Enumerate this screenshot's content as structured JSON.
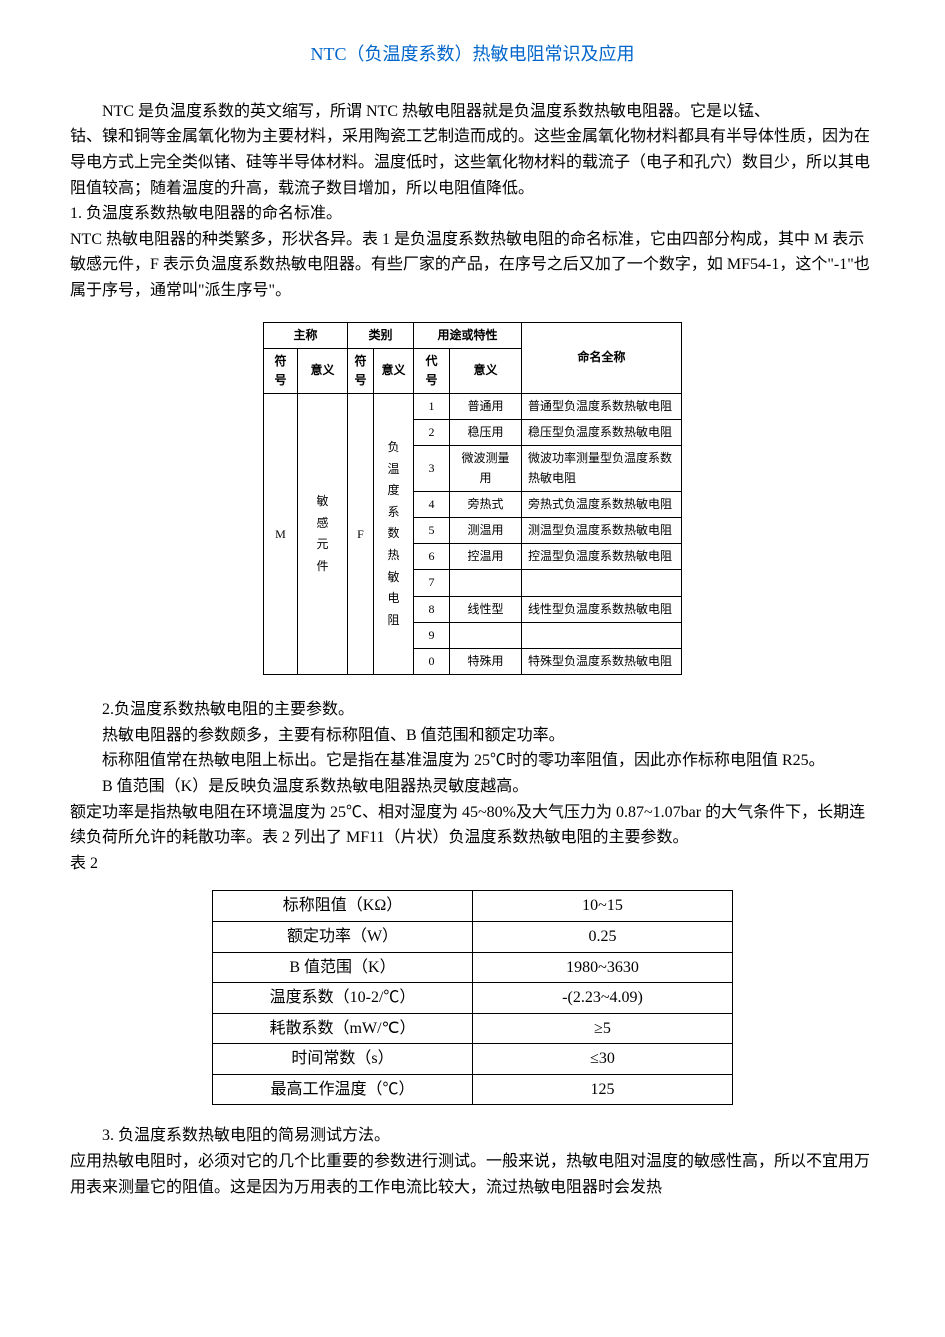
{
  "title": "NTC（负温度系数）热敏电阻常识及应用",
  "para1_a": "NTC 是负温度系数的英文缩写，所谓 NTC 热敏电阻器就是负温度系数热敏电阻器。它是以锰、",
  "para1_b": "钴、镍和铜等金属氧化物为主要材料，采用陶瓷工艺制造而成的。这些金属氧化物材料都具有半导体性质，因为在导电方式上完全类似锗、硅等半导体材料。温度低时，这些氧化物材料的载流子（电子和孔穴）数目少，所以其电阻值较高；随着温度的升高，载流子数目增加，所以电阻值降低。",
  "sec1_title": "1. 负温度系数热敏电阻器的命名标准。",
  "sec1_body": "NTC 热敏电阻器的种类繁多，形状各异。表 1 是负温度系数热敏电阻的命名标准，它由四部分构成，其中 M 表示敏感元件，F 表示负温度系数热敏电阻器。有些厂家的产品，在序号之后又加了一个数字，如 MF54-1，这个\"-1\"也属于序号，通常叫\"派生序号\"。",
  "t1": {
    "headers": {
      "group1": "主称",
      "group2": "类别",
      "group3": "用途或特性",
      "h_sym": "符号",
      "h_mean": "意义",
      "h_sym2": "符号",
      "h_mean2": "意义",
      "h_code": "代号",
      "h_mean3": "意义",
      "h_full": "命名全称"
    },
    "col1_sym": "M",
    "col1_mean": "敏\n感\n元\n件",
    "col2_sym": "F",
    "col2_mean": "负\n温\n度\n系\n数\n热\n敏\n电\n阻",
    "rows": [
      {
        "code": "1",
        "use": "普通用",
        "full": "普通型负温度系数热敏电阻"
      },
      {
        "code": "2",
        "use": "稳压用",
        "full": "稳压型负温度系数热敏电阻"
      },
      {
        "code": "3",
        "use": "微波测量用",
        "full": "微波功率测量型负温度系数热敏电阻"
      },
      {
        "code": "4",
        "use": "旁热式",
        "full": "旁热式负温度系数热敏电阻"
      },
      {
        "code": "5",
        "use": "测温用",
        "full": "测温型负温度系数热敏电阻"
      },
      {
        "code": "6",
        "use": "控温用",
        "full": "控温型负温度系数热敏电阻"
      },
      {
        "code": "7",
        "use": "",
        "full": ""
      },
      {
        "code": "8",
        "use": "线性型",
        "full": "线性型负温度系数热敏电阻"
      },
      {
        "code": "9",
        "use": "",
        "full": ""
      },
      {
        "code": "0",
        "use": "特殊用",
        "full": "特殊型负温度系数热敏电阻"
      }
    ]
  },
  "sec2_title": "2.负温度系数热敏电阻的主要参数。",
  "sec2_p1": "热敏电阻器的参数颇多，主要有标称阻值、B 值范围和额定功率。",
  "sec2_p2": "标称阻值常在热敏电阻上标出。它是指在基准温度为 25℃时的零功率阻值，因此亦作标称电阻值 R25。",
  "sec2_p3": "B 值范围（K）是反映负温度系数热敏电阻器热灵敏度越高。",
  "sec2_p4": "额定功率是指热敏电阻在环境温度为 25℃、相对湿度为 45~80%及大气压力为 0.87~1.07bar 的大气条件下，长期连续负荷所允许的耗散功率。表 2 列出了 MF11（片状）负温度系数热敏电阻的主要参数。",
  "t2_label": "表 2",
  "t2": {
    "rows": [
      {
        "label": "标称阻值（KΩ）",
        "value": "10~15"
      },
      {
        "label": "额定功率（W）",
        "value": "0.25"
      },
      {
        "label": "B 值范围（K）",
        "value": "1980~3630"
      },
      {
        "label": "温度系数（10-2/℃）",
        "value": "-(2.23~4.09)"
      },
      {
        "label": "耗散系数（mW/℃）",
        "value": "≥5"
      },
      {
        "label": "时间常数（s）",
        "value": "≤30"
      },
      {
        "label": "最高工作温度（℃）",
        "value": "125"
      }
    ]
  },
  "sec3_title": "3. 负温度系数热敏电阻的简易测试方法。",
  "sec3_body": "应用热敏电阻时，必须对它的几个比重要的参数进行测试。一般来说，热敏电阻对温度的敏感性高，所以不宜用万用表来测量它的阻值。这是因为万用表的工作电流比较大，流过热敏电阻器时会发热"
}
